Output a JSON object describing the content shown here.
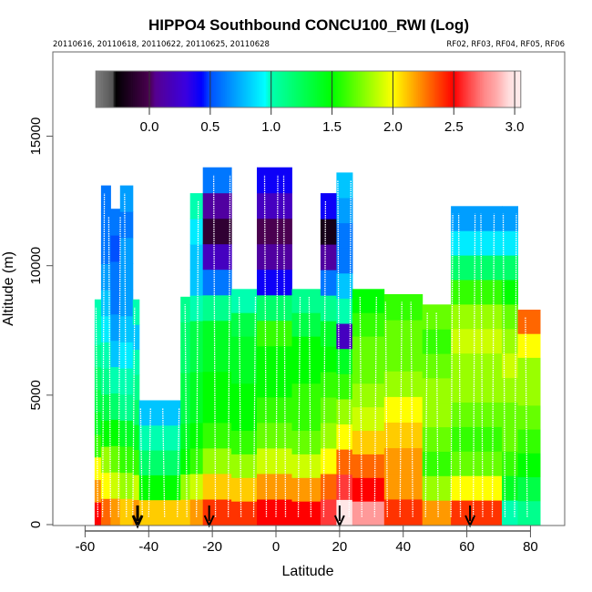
{
  "chart_data": {
    "type": "heatmap",
    "title": "HIPPO4 Southbound CONCU100_RWI (Log)",
    "subtitle_left": "20110616, 20110618, 20110622, 20110625, 20110628",
    "subtitle_right": "RF02, RF03, RF04, RF05, RF06",
    "xlabel": "Latitude",
    "ylabel": "Altitude (m)",
    "xlim": [
      -70,
      92
    ],
    "ylim": [
      0,
      18000
    ],
    "x_ticks": [
      -60,
      -40,
      -20,
      0,
      20,
      40,
      60,
      80
    ],
    "x_tick_labels": [
      "-60",
      "-40",
      "-20",
      "0",
      "20",
      "40",
      "60",
      "80"
    ],
    "y_ticks": [
      0,
      5000,
      10000,
      15000
    ],
    "y_tick_labels": [
      "0",
      "5000",
      "10000",
      "15000"
    ],
    "colorbar": {
      "range": [
        -0.44,
        3.05
      ],
      "ticks": [
        0.0,
        0.5,
        1.0,
        1.5,
        2.0,
        2.5,
        3.0
      ],
      "tick_labels": [
        "0.0",
        "0.5",
        "1.0",
        "1.5",
        "2.0",
        "2.5",
        "3.0"
      ],
      "stops": [
        {
          "v": -0.44,
          "color": "#7f7f7f"
        },
        {
          "v": -0.3,
          "color": "#555555"
        },
        {
          "v": -0.28,
          "color": "#000000"
        },
        {
          "v": 0.0,
          "color": "#4a0050"
        },
        {
          "v": 0.05,
          "color": "#560090"
        },
        {
          "v": 0.3,
          "color": "#3a00e0"
        },
        {
          "v": 0.43,
          "color": "#0000ff"
        },
        {
          "v": 0.5,
          "color": "#0050ff"
        },
        {
          "v": 0.95,
          "color": "#00ffff"
        },
        {
          "v": 1.0,
          "color": "#00ffb0"
        },
        {
          "v": 1.5,
          "color": "#00ff00"
        },
        {
          "v": 2.0,
          "color": "#ffff00"
        },
        {
          "v": 2.5,
          "color": "#ff0000"
        },
        {
          "v": 2.62,
          "color": "#ff4444"
        },
        {
          "v": 2.75,
          "color": "#ff8888"
        },
        {
          "v": 2.85,
          "color": "#ffaaaa"
        },
        {
          "v": 2.95,
          "color": "#ffdddd"
        },
        {
          "v": 3.05,
          "color": "#ffeeee"
        }
      ]
    },
    "columns": [
      {
        "lat0": -57,
        "lat1": -55,
        "top": 8700,
        "vals": [
          2.5,
          2.2,
          2.0,
          1.6,
          1.4,
          1.3,
          1.2,
          1.1,
          1.0,
          1.0
        ]
      },
      {
        "lat0": -55,
        "lat1": -52,
        "top": 13100,
        "vals": [
          2.3,
          2.0,
          1.8,
          1.5,
          1.3,
          1.1,
          1.0,
          0.9,
          0.8,
          0.7,
          0.6,
          0.6,
          0.6
        ]
      },
      {
        "lat0": -52,
        "lat1": -49,
        "top": 12200,
        "vals": [
          2.2,
          1.9,
          1.7,
          1.5,
          1.2,
          1.0,
          0.8,
          0.7,
          0.6,
          0.6,
          0.5,
          0.6
        ]
      },
      {
        "lat0": -49,
        "lat1": -45,
        "top": 13100,
        "vals": [
          2.1,
          1.8,
          1.6,
          1.4,
          1.1,
          1.0,
          0.9,
          0.8,
          0.7,
          0.7,
          0.7,
          0.6,
          0.7
        ]
      },
      {
        "lat0": -45,
        "lat1": -43,
        "top": 8700,
        "vals": [
          2.2,
          1.9,
          1.6,
          1.4,
          1.2,
          1.1,
          1.0,
          0.8,
          1.0
        ]
      },
      {
        "lat0": -43,
        "lat1": -30,
        "top": 4800,
        "vals": [
          2.1,
          1.5,
          1.2,
          1.0,
          0.8
        ]
      },
      {
        "lat0": -30,
        "lat1": -27,
        "top": 8800,
        "vals": [
          2.1,
          1.8,
          1.5,
          1.4,
          1.3,
          1.3,
          1.2,
          1.2,
          1.1
        ]
      },
      {
        "lat0": -27,
        "lat1": -23,
        "top": 12800,
        "vals": [
          2.2,
          1.9,
          1.6,
          1.5,
          1.4,
          1.4,
          1.3,
          1.3,
          1.0,
          0.8,
          0.8,
          0.9,
          1.0
        ]
      },
      {
        "lat0": -23,
        "lat1": -14,
        "top": 13800,
        "vals": [
          2.4,
          2.1,
          1.8,
          1.6,
          1.5,
          1.5,
          1.4,
          1.4,
          1.1,
          0.6,
          0.2,
          -0.1,
          0.1,
          0.6
        ]
      },
      {
        "lat0": -14,
        "lat1": -6,
        "top": 9100,
        "vals": [
          2.4,
          2.1,
          1.8,
          1.6,
          1.5,
          1.5,
          1.4,
          1.4,
          1.3,
          1.0
        ]
      },
      {
        "lat0": -6,
        "lat1": 5,
        "top": 13800,
        "vals": [
          2.5,
          2.2,
          1.9,
          1.7,
          1.6,
          1.5,
          1.5,
          1.6,
          1.2,
          0.4,
          0.1,
          0.0,
          0.2,
          0.4
        ]
      },
      {
        "lat0": 5,
        "lat1": 14,
        "top": 9100,
        "vals": [
          2.5,
          2.2,
          1.9,
          1.7,
          1.6,
          1.6,
          1.5,
          1.5,
          1.3,
          1.1
        ]
      },
      {
        "lat0": 14,
        "lat1": 19,
        "top": 12800,
        "vals": [
          2.6,
          2.3,
          2.0,
          1.8,
          1.7,
          1.6,
          1.5,
          1.4,
          1.1,
          0.6,
          0.1,
          -0.2,
          0.4
        ]
      },
      {
        "lat0": 19,
        "lat1": 24,
        "top": 13600,
        "vals": [
          3.0,
          2.6,
          2.3,
          2.0,
          1.8,
          1.6,
          1.4,
          0.2,
          1.0,
          0.8,
          0.6,
          0.6,
          0.7,
          0.8
        ]
      },
      {
        "lat0": 24,
        "lat1": 34,
        "top": 9100,
        "vals": [
          2.8,
          2.5,
          2.3,
          2.1,
          1.9,
          1.8,
          1.7,
          1.7,
          1.6,
          1.5
        ]
      },
      {
        "lat0": 34,
        "lat1": 46,
        "top": 8900,
        "vals": [
          2.4,
          2.2,
          2.2,
          2.1,
          2.0,
          1.8,
          1.7,
          1.7,
          1.6
        ]
      },
      {
        "lat0": 46,
        "lat1": 55,
        "top": 8500,
        "vals": [
          2.2,
          1.8,
          1.6,
          1.7,
          1.8,
          1.8,
          1.7,
          1.6,
          1.7
        ]
      },
      {
        "lat0": 55,
        "lat1": 71,
        "top": 12300,
        "vals": [
          2.4,
          2.0,
          1.7,
          1.6,
          1.7,
          1.8,
          1.8,
          1.9,
          1.8,
          1.6,
          1.2,
          0.9,
          0.7
        ]
      },
      {
        "lat0": 71,
        "lat1": 76,
        "top": 12300,
        "vals": [
          1.0,
          1.4,
          1.6,
          1.7,
          1.7,
          1.8,
          1.9,
          1.8,
          1.7,
          1.5,
          1.2,
          0.9,
          0.7
        ]
      },
      {
        "lat0": 76,
        "lat1": 83,
        "top": 8300,
        "vals": [
          1.1,
          1.3,
          1.5,
          1.6,
          1.7,
          1.8,
          1.8,
          2.0,
          2.3
        ]
      }
    ],
    "flight_tracks_lat": [
      -56,
      -54.5,
      -52,
      -49.5,
      -47,
      -45,
      -42,
      -40,
      -35,
      -31,
      -28,
      -25,
      -19,
      -15,
      -11,
      -7,
      -3,
      0,
      3,
      7,
      11,
      15,
      20,
      23,
      27,
      31,
      35,
      39,
      43,
      47,
      51,
      55,
      58,
      62,
      65,
      68,
      72,
      75,
      79
    ],
    "arrows_lat": [
      -43.5,
      -21,
      20,
      61
    ]
  }
}
